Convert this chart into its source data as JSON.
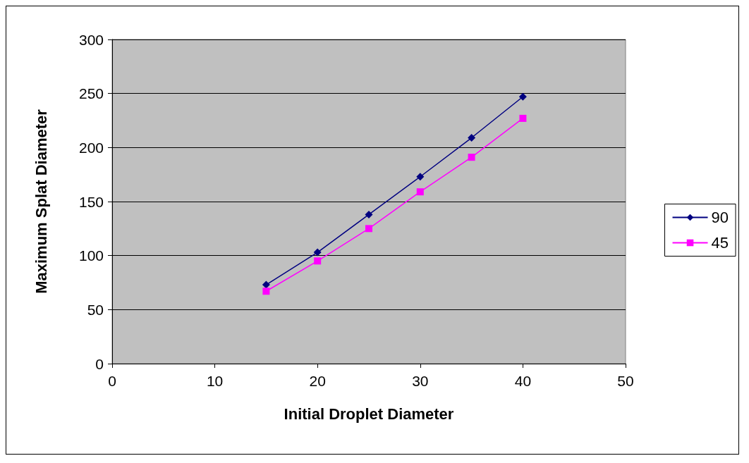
{
  "chart_data": {
    "type": "line",
    "xlabel": "Initial Droplet Diameter",
    "ylabel": "Maximum Splat Diameter",
    "x": [
      15,
      20,
      25,
      30,
      35,
      40
    ],
    "series": [
      {
        "name": "90",
        "color": "#000080",
        "marker": "diamond",
        "values": [
          73,
          103,
          138,
          173,
          209,
          247
        ]
      },
      {
        "name": "45",
        "color": "#ff00ff",
        "marker": "square",
        "values": [
          67,
          95,
          125,
          159,
          191,
          227
        ]
      }
    ],
    "xlim": [
      0,
      50
    ],
    "xticks": [
      0,
      10,
      20,
      30,
      40,
      50
    ],
    "ylim": [
      0,
      300
    ],
    "yticks": [
      0,
      50,
      100,
      150,
      200,
      250,
      300
    ],
    "grid": "y",
    "legend": "right",
    "line_style": "solid"
  }
}
